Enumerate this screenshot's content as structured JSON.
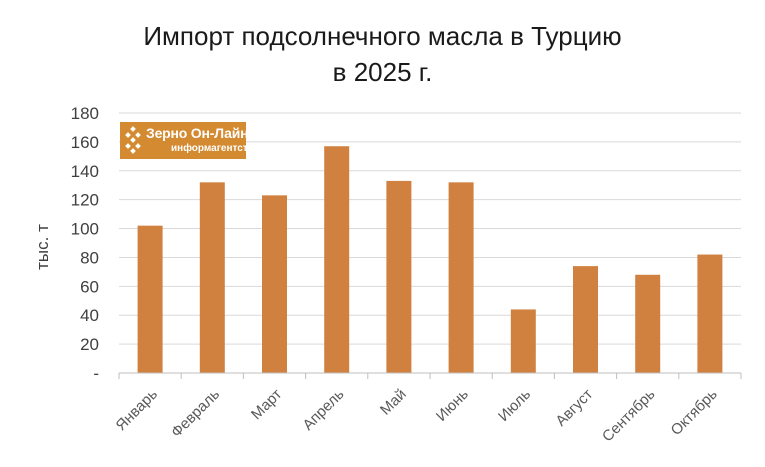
{
  "chart_data": {
    "type": "bar",
    "title_line1": "Импорт подсолнечного масла в Турцию",
    "title_line2": "в 2025 г.",
    "ylabel": "тыс. т",
    "xlabel": "",
    "ylim": [
      0,
      180
    ],
    "yticks": [
      0,
      20,
      40,
      60,
      80,
      100,
      120,
      140,
      160,
      180
    ],
    "ytick_labels": [
      "-",
      "20",
      "40",
      "60",
      "80",
      "100",
      "120",
      "140",
      "160",
      "180"
    ],
    "grid": true,
    "legend": "none",
    "categories": [
      "Январь",
      "Февраль",
      "Март",
      "Апрель",
      "Май",
      "Июнь",
      "Июль",
      "Август",
      "Сентябрь",
      "Октябрь"
    ],
    "values": [
      102,
      132,
      123,
      157,
      133,
      132,
      44,
      74,
      68,
      82
    ],
    "bar_color": "#d0813f"
  },
  "logo": {
    "name": "Зерно Он-Лайн",
    "subtitle": "информагентство",
    "color": "#d48a30"
  }
}
